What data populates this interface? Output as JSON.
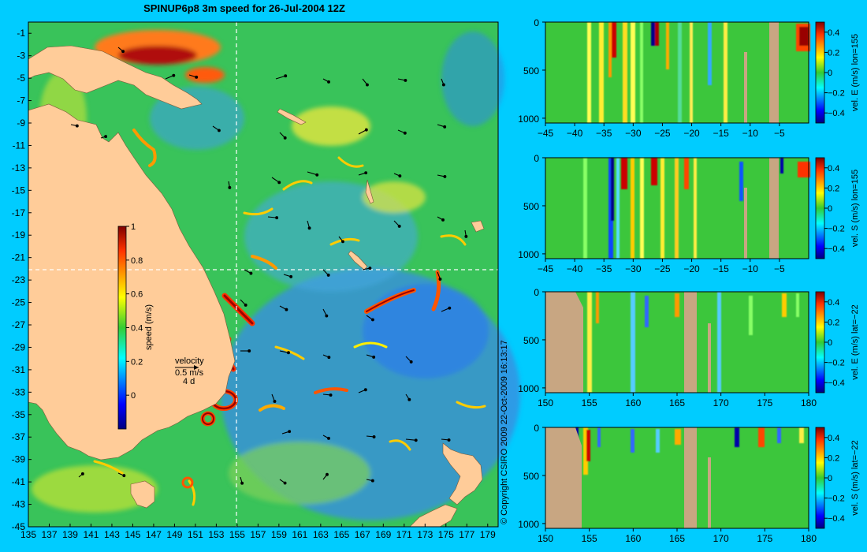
{
  "title": "SPINUP6p8 3m speed for 26-Jul-2004 12Z",
  "copyright": "© Copyright CSIRO 2009   22-Oct-2009 16:13:17",
  "colors": {
    "background": "#00ccff",
    "land": "#ffcc99",
    "section_land": "#c8a682"
  },
  "chart_data": [
    {
      "type": "heatmap",
      "title": "SPINUP6p8 3m speed for 26-Jul-2004 12Z",
      "x_ticks": [
        135,
        137,
        139,
        141,
        143,
        145,
        147,
        149,
        151,
        153,
        155,
        157,
        159,
        161,
        163,
        165,
        167,
        169,
        171,
        173,
        175,
        177,
        179
      ],
      "y_ticks": [
        -1,
        -3,
        -5,
        -7,
        -9,
        -11,
        -13,
        -15,
        -17,
        -19,
        -21,
        -23,
        -25,
        -27,
        -29,
        -31,
        -33,
        -35,
        -37,
        -39,
        -41,
        -43,
        -45
      ],
      "xlim": [
        135,
        180
      ],
      "ylim": [
        -45,
        0
      ],
      "colorbar": {
        "label": "speed (m/s)",
        "ticks": [
          0,
          0.2,
          0.4,
          0.6,
          0.8,
          1
        ],
        "range": [
          -0.2,
          1
        ]
      },
      "velocity_key": {
        "label": "velocity",
        "speed": "0.5 m/s",
        "duration": "4 d"
      },
      "section_lines": {
        "lon": 155,
        "lat": -22
      }
    },
    {
      "type": "heatmap",
      "label": "vel. E (m/s)  lon=155",
      "x_ticks": [
        -45,
        -40,
        -35,
        -30,
        -25,
        -20,
        -15,
        -10,
        -5
      ],
      "y_ticks": [
        0,
        500,
        1000
      ],
      "xlim": [
        -45,
        0
      ],
      "ylim": [
        1050,
        0
      ],
      "colorbar_ticks": [
        0.4,
        0.2,
        0,
        -0.2,
        -0.4
      ]
    },
    {
      "type": "heatmap",
      "label": "vel. S (m/s)  lon=155",
      "x_ticks": [
        -45,
        -40,
        -35,
        -30,
        -25,
        -20,
        -15,
        -10,
        -5
      ],
      "y_ticks": [
        0,
        500,
        1000
      ],
      "xlim": [
        -45,
        0
      ],
      "ylim": [
        1050,
        0
      ],
      "colorbar_ticks": [
        0.4,
        0.2,
        0,
        -0.2,
        -0.4
      ]
    },
    {
      "type": "heatmap",
      "label": "vel. E (m/s)  lat=−22",
      "x_ticks": [
        150,
        155,
        160,
        165,
        170,
        175,
        180
      ],
      "y_ticks": [
        0,
        500,
        1000
      ],
      "xlim": [
        150,
        180
      ],
      "ylim": [
        1050,
        0
      ],
      "colorbar_ticks": [
        0.4,
        0.2,
        0,
        -0.2,
        -0.4
      ]
    },
    {
      "type": "heatmap",
      "label": "vel. S (m/s)  lat=−22",
      "x_ticks": [
        150,
        155,
        160,
        165,
        170,
        175,
        180
      ],
      "y_ticks": [
        0,
        500,
        1000
      ],
      "xlim": [
        150,
        180
      ],
      "ylim": [
        1050,
        0
      ],
      "colorbar_ticks": [
        0.4,
        0.2,
        0,
        -0.2,
        -0.4
      ]
    }
  ]
}
